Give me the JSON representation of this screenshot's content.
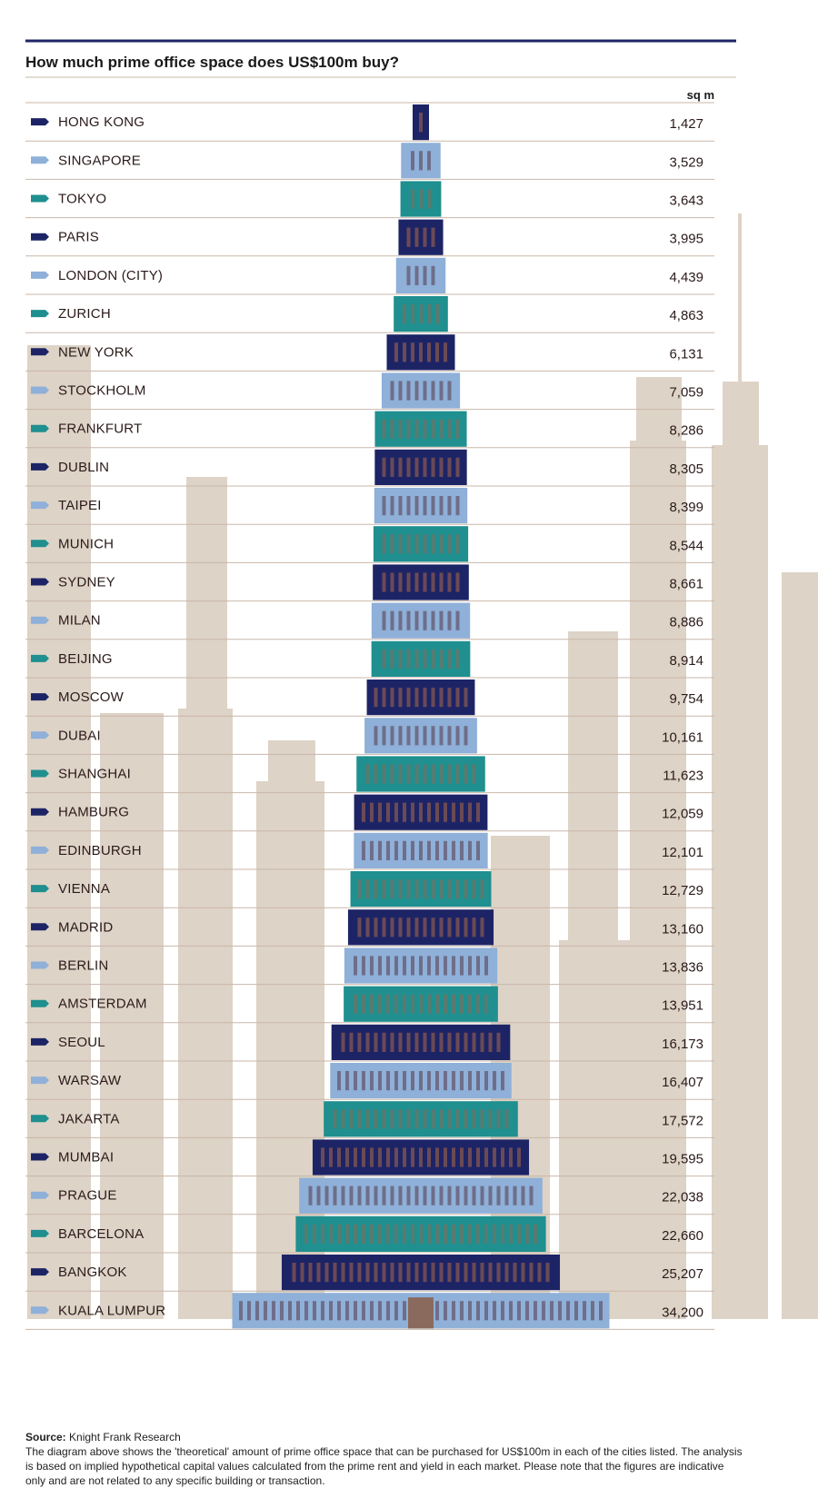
{
  "title": "How much prime office space does US$100m buy?",
  "unit": "sq m",
  "colors": {
    "navy": "#1d2466",
    "light_blue": "#8fb0d8",
    "teal": "#1f8f8f",
    "skyline": "#ddd3c6",
    "divider": "#c9b7aa",
    "rule": "#1d2466"
  },
  "chart_data": {
    "type": "bar",
    "title": "How much prime office space does US$100m buy?",
    "unit": "sq m",
    "categories": [
      "HONG KONG",
      "SINGAPORE",
      "TOKYO",
      "PARIS",
      "LONDON (CITY)",
      "ZURICH",
      "NEW YORK",
      "STOCKHOLM",
      "FRANKFURT",
      "DUBLIN",
      "TAIPEI",
      "MUNICH",
      "SYDNEY",
      "MILAN",
      "BEIJING",
      "MOSCOW",
      "DUBAI",
      "SHANGHAI",
      "HAMBURG",
      "EDINBURGH",
      "VIENNA",
      "MADRID",
      "BERLIN",
      "AMSTERDAM",
      "SEOUL",
      "WARSAW",
      "JAKARTA",
      "MUMBAI",
      "PRAGUE",
      "BARCELONA",
      "BANGKOK",
      "KUALA LUMPUR"
    ],
    "values": [
      1427,
      3529,
      3643,
      3995,
      4439,
      4863,
      6131,
      7059,
      8286,
      8305,
      8399,
      8544,
      8661,
      8886,
      8914,
      9754,
      10161,
      11623,
      12059,
      12101,
      12729,
      13160,
      13836,
      13951,
      16173,
      16407,
      17572,
      19595,
      22038,
      22660,
      25207,
      34200
    ],
    "labels": [
      "1,427",
      "3,529",
      "3,643",
      "3,995",
      "4,439",
      "4,863",
      "6,131",
      "7,059",
      "8,286",
      "8,305",
      "8,399",
      "8,544",
      "8,661",
      "8,886",
      "8,914",
      "9,754",
      "10,161",
      "11,623",
      "12,059",
      "12,101",
      "12,729",
      "13,160",
      "13,836",
      "13,951",
      "16,173",
      "16,407",
      "17,572",
      "19,595",
      "22,038",
      "22,660",
      "25,207",
      "34,200"
    ],
    "color_cycle": [
      "navy",
      "light_blue",
      "teal"
    ]
  },
  "footer": {
    "source_label": "Source:",
    "source_text": "Knight Frank Research",
    "note": "The diagram above shows the 'theoretical' amount of prime office space that can be purchased for US$100m in each of the cities listed. The analysis is based on implied hypothetical capital values calculated from the prime rent and yield in each market. Please note that the figures are indicative only and are not related to any specific building or transaction."
  }
}
